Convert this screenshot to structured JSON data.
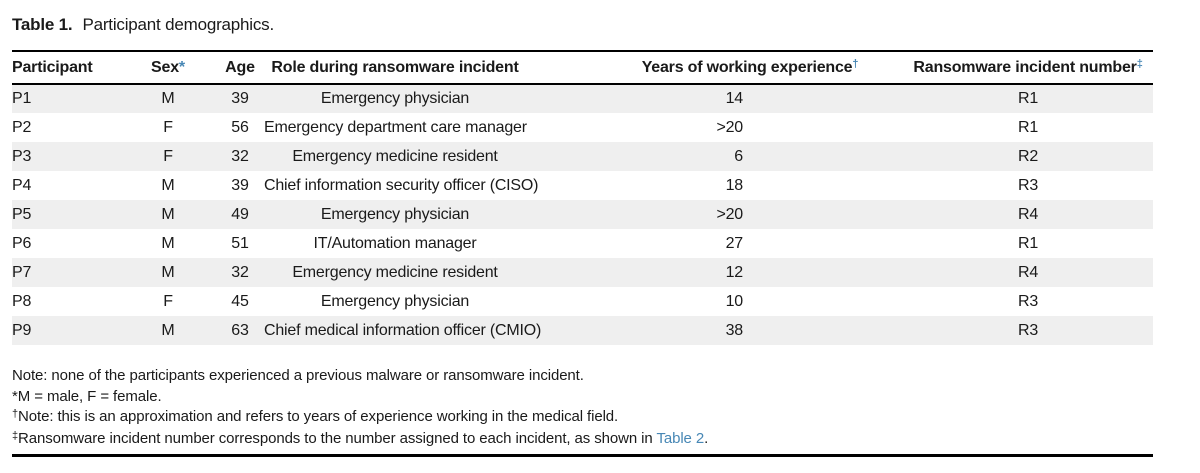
{
  "title": {
    "label": "Table 1.",
    "text": "Participant demographics."
  },
  "table": {
    "columns": [
      {
        "label": "Participant",
        "marker": ""
      },
      {
        "label": "Sex",
        "marker": "*"
      },
      {
        "label": "Age",
        "marker": ""
      },
      {
        "label": "Role during ransomware incident",
        "marker": ""
      },
      {
        "label": "Years of working experience",
        "marker": "†"
      },
      {
        "label": "Ransomware incident number",
        "marker": "‡"
      }
    ],
    "rows": [
      {
        "participant": "P1",
        "sex": "M",
        "age": "39",
        "role": "Emergency physician",
        "years": "14",
        "incident": "R1"
      },
      {
        "participant": "P2",
        "sex": "F",
        "age": "56",
        "role": "Emergency department care manager",
        "years": ">20",
        "incident": "R1"
      },
      {
        "participant": "P3",
        "sex": "F",
        "age": "32",
        "role": "Emergency medicine resident",
        "years": "6",
        "incident": "R2"
      },
      {
        "participant": "P4",
        "sex": "M",
        "age": "39",
        "role": "Chief information security officer (CISO)",
        "years": "18",
        "incident": "R3"
      },
      {
        "participant": "P5",
        "sex": "M",
        "age": "49",
        "role": "Emergency physician",
        "years": ">20",
        "incident": "R4"
      },
      {
        "participant": "P6",
        "sex": "M",
        "age": "51",
        "role": "IT/Automation manager",
        "years": "27",
        "incident": "R1"
      },
      {
        "participant": "P7",
        "sex": "M",
        "age": "32",
        "role": "Emergency medicine resident",
        "years": "12",
        "incident": "R4"
      },
      {
        "participant": "P8",
        "sex": "F",
        "age": "45",
        "role": "Emergency physician",
        "years": "10",
        "incident": "R3"
      },
      {
        "participant": "P9",
        "sex": "M",
        "age": "63",
        "role": "Chief medical information officer (CMIO)",
        "years": "38",
        "incident": "R3"
      }
    ]
  },
  "footnotes": {
    "note": "Note: none of the participants experienced a previous malware or ransomware incident.",
    "asterisk": {
      "marker": "*",
      "text": "M = male, F = female."
    },
    "dagger": {
      "marker": "†",
      "text": "Note: this is an approximation and refers to years of experience working in the medical field."
    },
    "double_dagger": {
      "marker": "‡",
      "text": "Ransomware incident number corresponds to the number assigned to each incident, as shown in ",
      "link": "Table 2",
      "suffix": "."
    }
  },
  "colors": {
    "accent_blue": "#4787b5",
    "stripe": "#efefef",
    "rule": "#000000"
  }
}
